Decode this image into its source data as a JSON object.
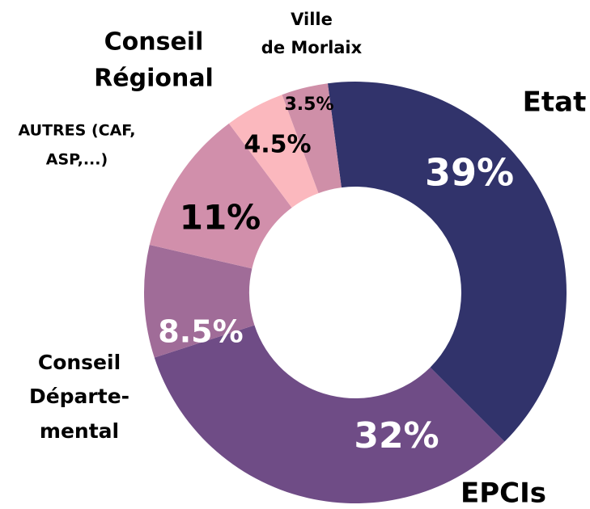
{
  "chart_data": {
    "type": "donut",
    "categories": [
      [
        "Etat"
      ],
      [
        "EPCIs"
      ],
      [
        "Conseil",
        "Départe-",
        "mental"
      ],
      [
        "AUTRES (CAF,",
        "ASP,...)"
      ],
      [
        "Conseil",
        "Régional"
      ],
      [
        "Ville",
        "de Morlaix"
      ]
    ],
    "values": [
      39,
      32,
      8.5,
      11,
      4.5,
      3.5
    ],
    "value_labels": [
      "39%",
      "32%",
      "8.5%",
      "11%",
      "4.5%",
      "3.5%"
    ],
    "colors": [
      "#31336b",
      "#6f4c86",
      "#a06c98",
      "#d18fab",
      "#fbb8be",
      "#cf8fa8"
    ]
  }
}
